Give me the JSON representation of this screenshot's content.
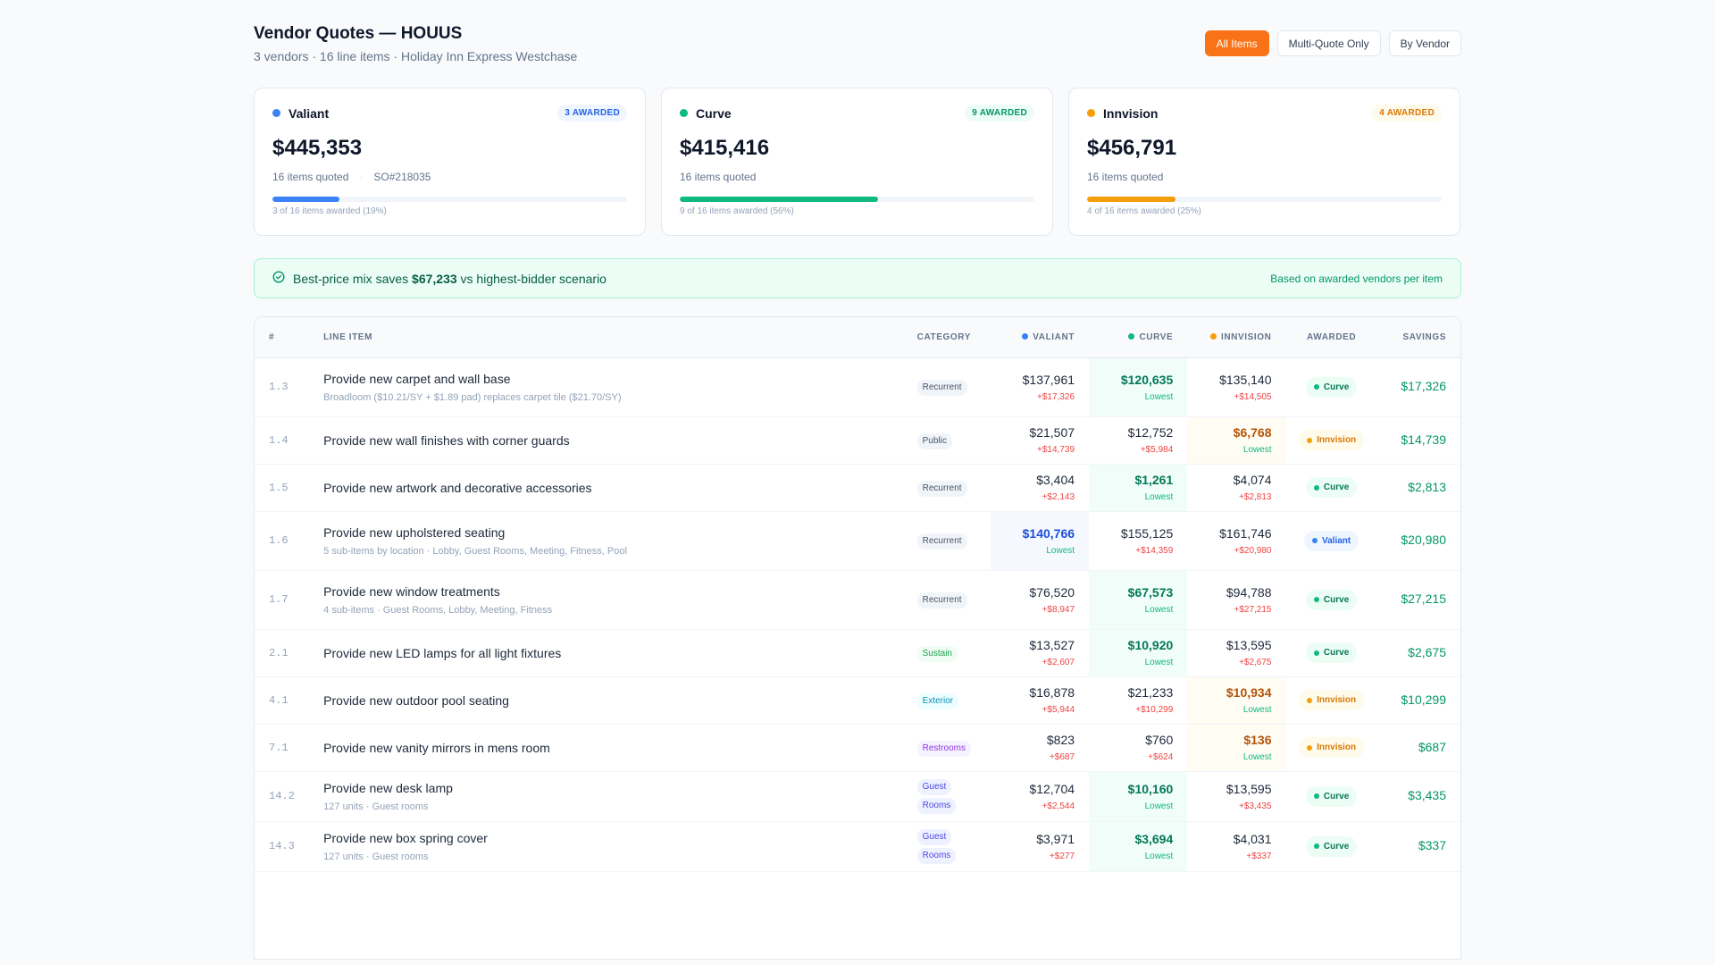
{
  "header": {
    "title": "Vendor Quotes — HOUUS",
    "subtitle": "3 vendors · 16 line items · Holiday Inn Express Westchase",
    "view_toggle": [
      {
        "label": "All Items",
        "active": true
      },
      {
        "label": "Multi-Quote Only",
        "active": false
      },
      {
        "label": "By Vendor",
        "active": false
      }
    ]
  },
  "colors": {
    "accent": "#f97316",
    "valiant": "#3b82f6",
    "curve": "#10b981",
    "innvision": "#f59e0b",
    "over_delta": "#ef4444",
    "savings": "#059669"
  },
  "vendors": [
    {
      "name": "Valiant",
      "awarded_badge": "3 AWARDED",
      "total": "$445,353",
      "items_quoted": "16 items quoted",
      "so_number": "SO#218035",
      "progress_pct": 19,
      "progress_label": "3 of 16 items awarded (19%)"
    },
    {
      "name": "Curve",
      "awarded_badge": "9 AWARDED",
      "total": "$415,416",
      "items_quoted": "16 items quoted",
      "so_number": "",
      "progress_pct": 56,
      "progress_label": "9 of 16 items awarded (56%)"
    },
    {
      "name": "Innvision",
      "awarded_badge": "4 AWARDED",
      "total": "$456,791",
      "items_quoted": "16 items quoted",
      "so_number": "",
      "progress_pct": 25,
      "progress_label": "4 of 16 items awarded (25%)"
    }
  ],
  "banner": {
    "icon": "check-circle-icon",
    "prefix": "Best-price mix saves",
    "amount": "$67,233",
    "suffix": "vs highest-bidder scenario",
    "note": "Based on awarded vendors per item"
  },
  "table": {
    "columns": {
      "idx": "#",
      "item": "Line Item",
      "category": "Category",
      "valiant": "Valiant",
      "curve": "Curve",
      "innvision": "Innvision",
      "awarded": "Awarded",
      "savings": "Savings"
    },
    "rows": [
      {
        "idx": "1.3",
        "title": "Provide new carpet and wall base",
        "sub": "Broadloom ($10.21/SY + $1.89 pad) replaces carpet tile ($21.70/SY)",
        "category": [
          "Recurrent"
        ],
        "cat_type": "gray",
        "valiant": {
          "price": "$137,961",
          "note": "+$17,326"
        },
        "curve": {
          "price": "$120,635",
          "note": "Lowest"
        },
        "innvision": {
          "price": "$135,140",
          "note": "+$14,505"
        },
        "best": "curve",
        "awarded": "Curve",
        "savings": "$17,326"
      },
      {
        "idx": "1.4",
        "title": "Provide new wall finishes with corner guards",
        "sub": "",
        "category": [
          "Public"
        ],
        "cat_type": "gray",
        "valiant": {
          "price": "$21,507",
          "note": "+$14,739"
        },
        "curve": {
          "price": "$12,752",
          "note": "+$5,984"
        },
        "innvision": {
          "price": "$6,768",
          "note": "Lowest"
        },
        "best": "innvision",
        "awarded": "Innvision",
        "savings": "$14,739"
      },
      {
        "idx": "1.5",
        "title": "Provide new artwork and decorative accessories",
        "sub": "",
        "category": [
          "Recurrent"
        ],
        "cat_type": "gray",
        "valiant": {
          "price": "$3,404",
          "note": "+$2,143"
        },
        "curve": {
          "price": "$1,261",
          "note": "Lowest"
        },
        "innvision": {
          "price": "$4,074",
          "note": "+$2,813"
        },
        "best": "curve",
        "awarded": "Curve",
        "savings": "$2,813"
      },
      {
        "idx": "1.6",
        "title": "Provide new upholstered seating",
        "sub": "5 sub-items by location · Lobby, Guest Rooms, Meeting, Fitness, Pool",
        "category": [
          "Recurrent"
        ],
        "cat_type": "gray",
        "valiant": {
          "price": "$140,766",
          "note": "Lowest"
        },
        "curve": {
          "price": "$155,125",
          "note": "+$14,359"
        },
        "innvision": {
          "price": "$161,746",
          "note": "+$20,980"
        },
        "best": "valiant",
        "awarded": "Valiant",
        "savings": "$20,980"
      },
      {
        "idx": "1.7",
        "title": "Provide new window treatments",
        "sub": "4 sub-items · Guest Rooms, Lobby, Meeting, Fitness",
        "category": [
          "Recurrent"
        ],
        "cat_type": "gray",
        "valiant": {
          "price": "$76,520",
          "note": "+$8,947"
        },
        "curve": {
          "price": "$67,573",
          "note": "Lowest"
        },
        "innvision": {
          "price": "$94,788",
          "note": "+$27,215"
        },
        "best": "curve",
        "awarded": "Curve",
        "savings": "$27,215"
      },
      {
        "idx": "2.1",
        "title": "Provide new LED lamps for all light fixtures",
        "sub": "",
        "category": [
          "Sustain"
        ],
        "cat_type": "green",
        "valiant": {
          "price": "$13,527",
          "note": "+$2,607"
        },
        "curve": {
          "price": "$10,920",
          "note": "Lowest"
        },
        "innvision": {
          "price": "$13,595",
          "note": "+$2,675"
        },
        "best": "curve",
        "awarded": "Curve",
        "savings": "$2,675"
      },
      {
        "idx": "4.1",
        "title": "Provide new outdoor pool seating",
        "sub": "",
        "category": [
          "Exterior"
        ],
        "cat_type": "cyan",
        "valiant": {
          "price": "$16,878",
          "note": "+$5,944"
        },
        "curve": {
          "price": "$21,233",
          "note": "+$10,299"
        },
        "innvision": {
          "price": "$10,934",
          "note": "Lowest"
        },
        "best": "innvision",
        "awarded": "Innvision",
        "savings": "$10,299"
      },
      {
        "idx": "7.1",
        "title": "Provide new vanity mirrors in mens room",
        "sub": "",
        "category": [
          "Restrooms"
        ],
        "cat_type": "purple",
        "valiant": {
          "price": "$823",
          "note": "+$687"
        },
        "curve": {
          "price": "$760",
          "note": "+$624"
        },
        "innvision": {
          "price": "$136",
          "note": "Lowest"
        },
        "best": "innvision",
        "awarded": "Innvision",
        "savings": "$687"
      },
      {
        "idx": "14.2",
        "title": "Provide new desk lamp",
        "sub": "127 units · Guest rooms",
        "category": [
          "Guest",
          "Rooms"
        ],
        "cat_type": "indigo",
        "valiant": {
          "price": "$12,704",
          "note": "+$2,544"
        },
        "curve": {
          "price": "$10,160",
          "note": "Lowest"
        },
        "innvision": {
          "price": "$13,595",
          "note": "+$3,435"
        },
        "best": "curve",
        "awarded": "Curve",
        "savings": "$3,435"
      },
      {
        "idx": "14.3",
        "title": "Provide new box spring cover",
        "sub": "127 units · Guest rooms",
        "category": [
          "Guest",
          "Rooms"
        ],
        "cat_type": "indigo",
        "valiant": {
          "price": "$3,971",
          "note": "+$277"
        },
        "curve": {
          "price": "$3,694",
          "note": "Lowest"
        },
        "innvision": {
          "price": "$4,031",
          "note": "+$337"
        },
        "best": "curve",
        "awarded": "Curve",
        "savings": "$337"
      }
    ]
  }
}
